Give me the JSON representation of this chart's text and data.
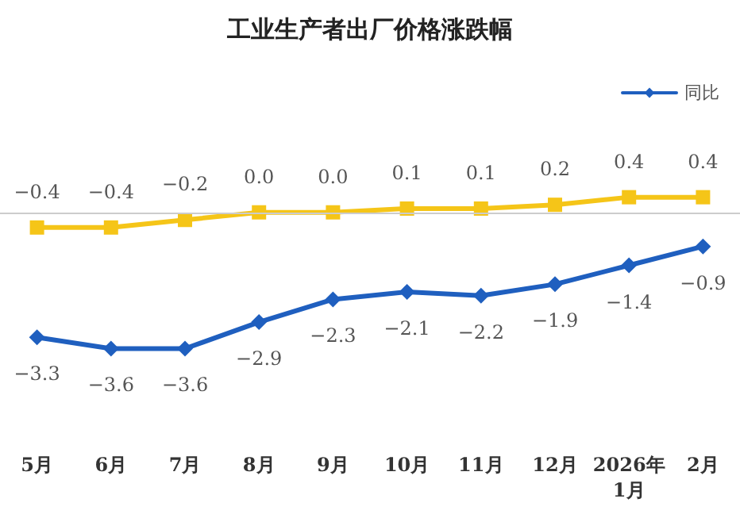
{
  "chart_data": {
    "type": "line",
    "title": "工业生产者出厂价格涨跌幅",
    "categories": [
      "5月",
      "6月",
      "7月",
      "8月",
      "9月",
      "10月",
      "11月",
      "12月",
      "2026年\n1月",
      "2月"
    ],
    "series": [
      {
        "name": "同比",
        "color": "#1f5fbf",
        "marker": "diamond",
        "values": [
          -3.3,
          -3.6,
          -3.6,
          -2.9,
          -2.3,
          -2.1,
          -2.2,
          -1.9,
          -1.4,
          -0.9
        ],
        "value_labels": [
          "−3.3",
          "−3.6",
          "−3.6",
          "−2.9",
          "−2.3",
          "−2.1",
          "−2.2",
          "−1.9",
          "−1.4",
          "−0.9"
        ]
      },
      {
        "color": "#f5c518",
        "marker": "square",
        "values": [
          -0.4,
          -0.4,
          -0.2,
          0.0,
          0.0,
          0.1,
          0.1,
          0.2,
          0.4,
          0.4
        ],
        "value_labels": [
          "−0.4",
          "−0.4",
          "−0.2",
          "0.0",
          "0.0",
          "0.1",
          "0.1",
          "0.2",
          "0.4",
          "0.4"
        ]
      }
    ],
    "legend": "top right",
    "grid": false,
    "ref_lines": [
      {
        "axis": "y",
        "value": 0,
        "color": "#cccccc"
      }
    ]
  }
}
